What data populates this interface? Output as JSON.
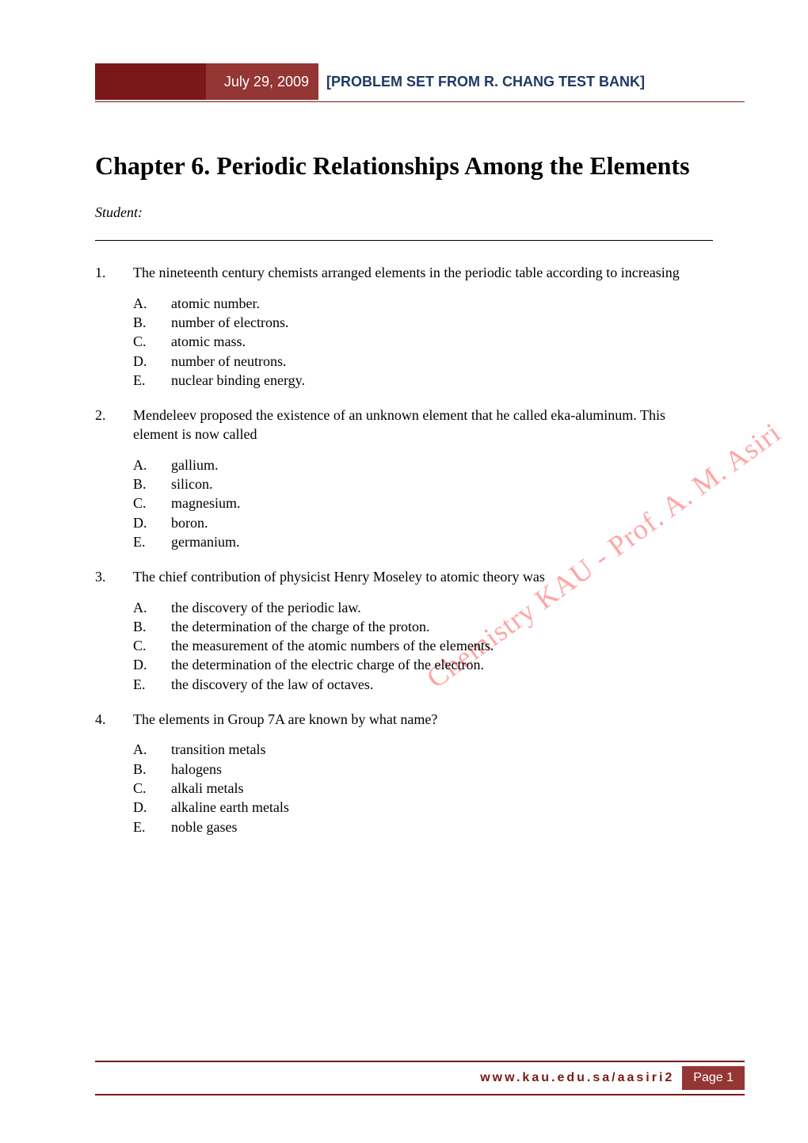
{
  "header": {
    "date": "July 29, 2009",
    "title": "[PROBLEM SET FROM R.  CHANG TEST BANK]",
    "bg_left_color": "#7a1818",
    "bg_date_color": "#943634",
    "title_color": "#1f3864",
    "date_text_color": "#ffffff"
  },
  "chapter_title": "Chapter 6.  Periodic Relationships Among the Elements",
  "student_label": "Student:",
  "questions": [
    {
      "num": "1.",
      "stem": "The nineteenth century chemists arranged elements in the periodic table according to increasing",
      "options": [
        {
          "letter": "A.",
          "text": "atomic number."
        },
        {
          "letter": "B.",
          "text": "number of electrons."
        },
        {
          "letter": "C.",
          "text": "atomic mass."
        },
        {
          "letter": "D.",
          "text": "number of neutrons."
        },
        {
          "letter": "E.",
          "text": "nuclear binding energy."
        }
      ]
    },
    {
      "num": "2.",
      "stem": "Mendeleev proposed the existence of an unknown element that he called eka-aluminum. This element is now called",
      "options": [
        {
          "letter": "A.",
          "text": "gallium."
        },
        {
          "letter": "B.",
          "text": "silicon."
        },
        {
          "letter": "C.",
          "text": "magnesium."
        },
        {
          "letter": "D.",
          "text": "boron."
        },
        {
          "letter": "E.",
          "text": "germanium."
        }
      ]
    },
    {
      "num": "3.",
      "stem": "The chief contribution of physicist Henry Moseley to atomic theory was",
      "options": [
        {
          "letter": "A.",
          "text": "the discovery of the periodic law."
        },
        {
          "letter": "B.",
          "text": "the determination of the charge of the proton."
        },
        {
          "letter": "C.",
          "text": "the measurement of the atomic numbers of the elements."
        },
        {
          "letter": "D.",
          "text": "the determination of the electric charge of the electron."
        },
        {
          "letter": "E.",
          "text": "the discovery of the law of octaves."
        }
      ]
    },
    {
      "num": "4.",
      "stem": "The elements in Group 7A are known by what name?",
      "options": [
        {
          "letter": "A.",
          "text": "transition metals"
        },
        {
          "letter": "B.",
          "text": "halogens"
        },
        {
          "letter": "C.",
          "text": "alkali metals"
        },
        {
          "letter": "D.",
          "text": "alkaline earth metals"
        },
        {
          "letter": "E.",
          "text": "noble gases"
        }
      ]
    }
  ],
  "watermark_text": "Chemistry KAU - Prof. A. M. Asiri",
  "footer": {
    "url": "www.kau.edu.sa/aasiri2",
    "page_label": "Page 1",
    "accent_color": "#7a1818",
    "box_color": "#943634"
  },
  "colors": {
    "text": "#000000",
    "background": "#ffffff",
    "watermark": "#ff0000"
  },
  "typography": {
    "body_font": "Times New Roman",
    "header_font": "Arial",
    "body_size_pt": 14,
    "h1_size_pt": 24
  }
}
